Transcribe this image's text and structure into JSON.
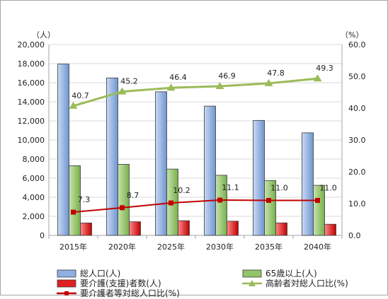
{
  "chart_data": {
    "type": "bar+line",
    "categories": [
      "2015年",
      "2020年",
      "2025年",
      "2030年",
      "2035年",
      "2040年"
    ],
    "left_axis": {
      "unit_label": "（人）",
      "ylim": [
        0,
        20000
      ],
      "step": 2000,
      "ticks": [
        "0",
        "2,000",
        "4,000",
        "6,000",
        "8,000",
        "10,000",
        "12,000",
        "14,000",
        "16,000",
        "18,000",
        "20,000"
      ]
    },
    "right_axis": {
      "unit_label": "（%）",
      "ylim": [
        0,
        60
      ],
      "step": 10,
      "ticks": [
        "0.0",
        "10.0",
        "20.0",
        "30.0",
        "40.0",
        "50.0",
        "60.0"
      ]
    },
    "series": [
      {
        "name": "総人口(人)",
        "type": "bar",
        "axis": "left",
        "color": "#8fb0e0",
        "values": [
          17950,
          16500,
          15050,
          13550,
          12050,
          10750
        ]
      },
      {
        "name": "65歳以上(人)",
        "type": "bar",
        "axis": "left",
        "color": "#92c46a",
        "values": [
          7300,
          7450,
          6950,
          6300,
          5750,
          5250
        ]
      },
      {
        "name": "要介護(支援)者数(人)",
        "type": "bar",
        "axis": "left",
        "color": "#e02020",
        "values": [
          1300,
          1430,
          1540,
          1490,
          1310,
          1170
        ]
      },
      {
        "name": "高齢者対総人口比(%)",
        "type": "line",
        "axis": "right",
        "color": "#9bbb59",
        "values": [
          40.7,
          45.2,
          46.4,
          46.9,
          47.8,
          49.3
        ],
        "labels": [
          "40.7",
          "45.2",
          "46.4",
          "46.9",
          "47.8",
          "49.3"
        ]
      },
      {
        "name": "要介護者等対総人口比(%)",
        "type": "line",
        "axis": "right",
        "color": "#c00000",
        "values": [
          7.3,
          8.7,
          10.2,
          11.1,
          11.0,
          11.0
        ],
        "labels": [
          "7.3",
          "8.7",
          "10.2",
          "11.1",
          "11.0",
          "11.0"
        ]
      }
    ],
    "grid": true,
    "legend": "bottom"
  }
}
